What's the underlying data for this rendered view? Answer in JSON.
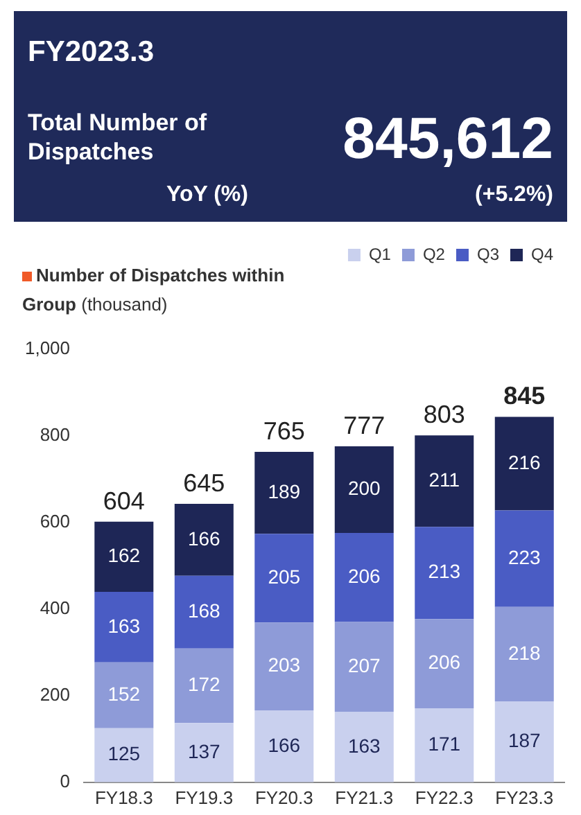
{
  "chart_data": {
    "type": "bar",
    "stacked": true,
    "title": "Number of Dispatches within Group (thousand)",
    "annotations": [
      "FY2023.3",
      "Total Number of Dispatches",
      "845,612",
      "YoY (%)",
      "(+5.2%)"
    ],
    "categories": [
      "FY18.3",
      "FY19.3",
      "FY20.3",
      "FY21.3",
      "FY22.3",
      "FY23.3"
    ],
    "series": [
      {
        "name": "Q1",
        "color": "#c9d0ee",
        "values": [
          125,
          137,
          166,
          163,
          171,
          187
        ]
      },
      {
        "name": "Q2",
        "color": "#8e9bd8",
        "values": [
          152,
          172,
          203,
          207,
          206,
          218
        ]
      },
      {
        "name": "Q3",
        "color": "#4a5cc4",
        "values": [
          163,
          168,
          205,
          206,
          213,
          223
        ]
      },
      {
        "name": "Q4",
        "color": "#1e2656",
        "values": [
          162,
          166,
          189,
          200,
          211,
          216
        ]
      }
    ],
    "totals": [
      "604",
      "645",
      "765",
      "777",
      "803",
      "845"
    ],
    "data_labels": true,
    "ylim": [
      0,
      1000
    ],
    "yticks": [
      0,
      {
        "value": 200,
        "label": "200"
      },
      400,
      600,
      800,
      {
        "value": 1000,
        "label": "1,000"
      }
    ],
    "grid": false,
    "legend": "top right"
  }
}
